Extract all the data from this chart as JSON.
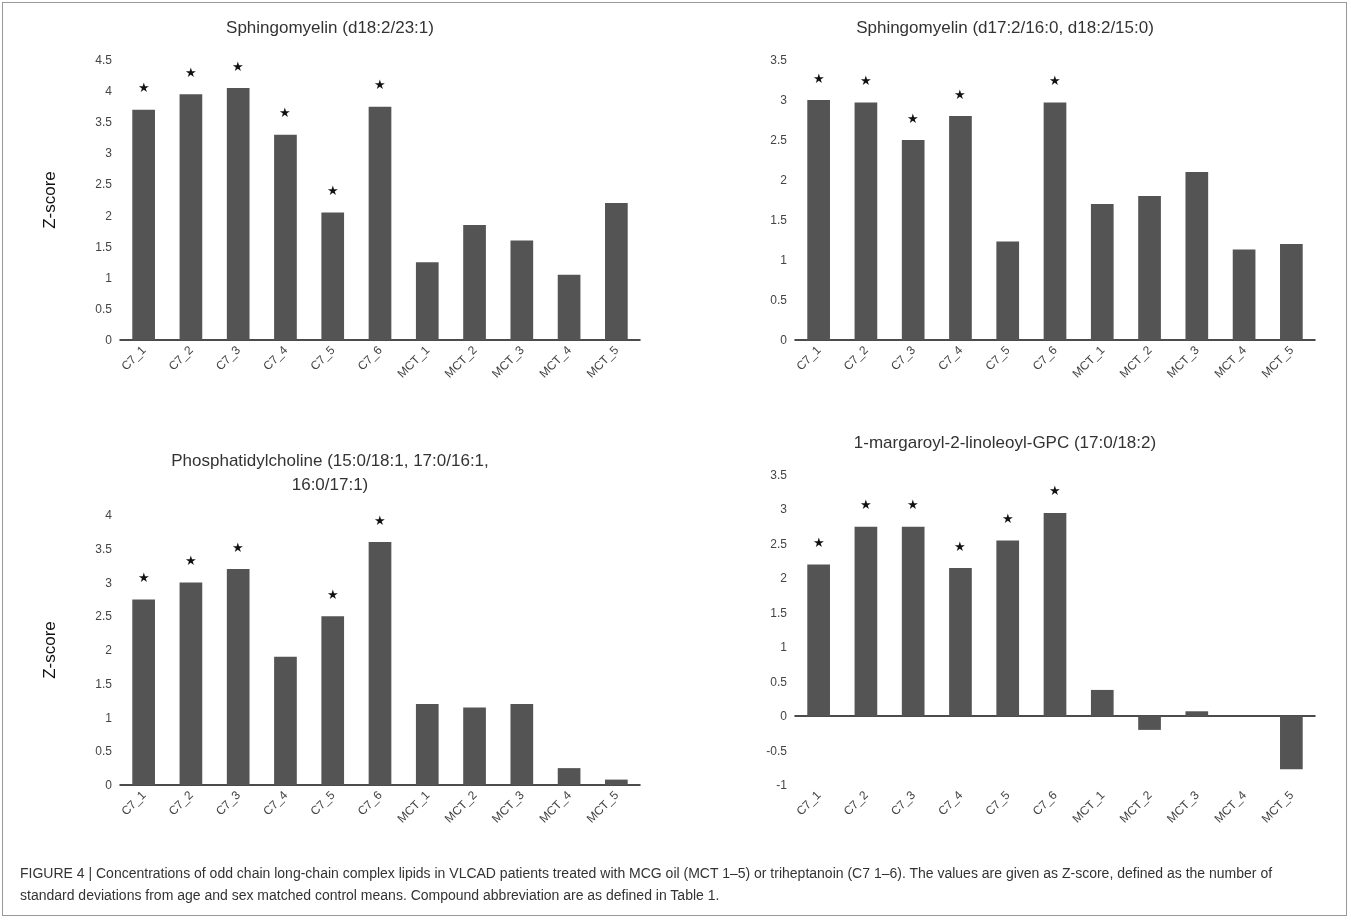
{
  "chart_data": [
    {
      "type": "bar",
      "title": "Sphingomyelin (d18:2/23:1)",
      "ylabel": "Z-score",
      "categories": [
        "C7_1",
        "C7_2",
        "C7_3",
        "C7_4",
        "C7_5",
        "C7_6",
        "MCT_1",
        "MCT_2",
        "MCT_3",
        "MCT_4",
        "MCT_5"
      ],
      "color": "#545454",
      "values": [
        3.7,
        3.95,
        4.05,
        3.3,
        2.05,
        3.75,
        1.25,
        1.85,
        1.6,
        1.05,
        2.2
      ],
      "ylim": [
        0,
        4.5
      ],
      "yticks": [
        0,
        0.5,
        1,
        1.5,
        2,
        2.5,
        3,
        3.5,
        4,
        4.5
      ],
      "annotations": [
        {
          "text": "★",
          "x": "C7_1",
          "y": 3.7
        },
        {
          "text": "★",
          "x": "C7_2",
          "y": 3.95
        },
        {
          "text": "★",
          "x": "C7_3",
          "y": 4.05
        },
        {
          "text": "★",
          "x": "C7_4",
          "y": 3.3
        },
        {
          "text": "★",
          "x": "C7_5",
          "y": 2.05
        },
        {
          "text": "★",
          "x": "C7_6",
          "y": 3.75
        }
      ]
    },
    {
      "type": "bar",
      "title": "Sphingomyelin (d17:2/16:0, d18:2/15:0)",
      "categories": [
        "C7_1",
        "C7_2",
        "C7_3",
        "C7_4",
        "C7_5",
        "C7_6",
        "MCT_1",
        "MCT_2",
        "MCT_3",
        "MCT_4",
        "MCT_5"
      ],
      "color": "#545454",
      "values": [
        3.0,
        2.97,
        2.5,
        2.8,
        1.23,
        2.97,
        1.7,
        1.8,
        2.1,
        1.13,
        1.2
      ],
      "ylim": [
        0,
        3.5
      ],
      "yticks": [
        0,
        0.5,
        1,
        1.5,
        2,
        2.5,
        3,
        3.5
      ],
      "annotations": [
        {
          "text": "★",
          "x": "C7_1",
          "y": 3.0
        },
        {
          "text": "★",
          "x": "C7_2",
          "y": 2.97
        },
        {
          "text": "★",
          "x": "C7_3",
          "y": 2.5
        },
        {
          "text": "★",
          "x": "C7_4",
          "y": 2.8
        },
        {
          "text": "★",
          "x": "C7_6",
          "y": 2.97
        }
      ]
    },
    {
      "type": "bar",
      "title": "Phosphatidylcholine (15:0/18:1, 17:0/16:1,\n16:0/17:1)",
      "ylabel": "Z-score",
      "categories": [
        "C7_1",
        "C7_2",
        "C7_3",
        "C7_4",
        "C7_5",
        "C7_6",
        "MCT_1",
        "MCT_2",
        "MCT_3",
        "MCT_4",
        "MCT_5"
      ],
      "color": "#545454",
      "values": [
        2.75,
        3.0,
        3.2,
        1.9,
        2.5,
        3.6,
        1.2,
        1.15,
        1.2,
        0.25,
        0.08
      ],
      "ylim": [
        0,
        4
      ],
      "yticks": [
        0,
        0.5,
        1,
        1.5,
        2,
        2.5,
        3,
        3.5,
        4
      ],
      "annotations": [
        {
          "text": "★",
          "x": "C7_1",
          "y": 2.75
        },
        {
          "text": "★",
          "x": "C7_2",
          "y": 3.0
        },
        {
          "text": "★",
          "x": "C7_3",
          "y": 3.2
        },
        {
          "text": "★",
          "x": "C7_5",
          "y": 2.5
        },
        {
          "text": "★",
          "x": "C7_6",
          "y": 3.6
        }
      ]
    },
    {
      "type": "bar",
      "title": "1-margaroyl-2-linoleoyl-GPC (17:0/18:2)",
      "categories": [
        "C7_1",
        "C7_2",
        "C7_3",
        "C7_4",
        "C7_5",
        "C7_6",
        "MCT_1",
        "MCT_2",
        "MCT_3",
        "MCT_4",
        "MCT_5"
      ],
      "color": "#545454",
      "values": [
        2.2,
        2.75,
        2.75,
        2.15,
        2.55,
        2.95,
        0.38,
        -0.2,
        0.07,
        0,
        -0.77
      ],
      "ylim": [
        -1,
        3.5
      ],
      "yticks": [
        -1,
        -0.5,
        0,
        0.5,
        1,
        1.5,
        2,
        2.5,
        3,
        3.5
      ],
      "annotations": [
        {
          "text": "★",
          "x": "C7_1",
          "y": 2.2
        },
        {
          "text": "★",
          "x": "C7_2",
          "y": 2.75
        },
        {
          "text": "★",
          "x": "C7_3",
          "y": 2.75
        },
        {
          "text": "★",
          "x": "C7_4",
          "y": 2.15
        },
        {
          "text": "★",
          "x": "C7_5",
          "y": 2.55
        },
        {
          "text": "★",
          "x": "C7_6",
          "y": 2.95
        },
        "FIGURE 4 | Concentrations of odd chain long-chain complex lipids in VLCAD patients treated with MCG oil (MCT 1–5) or triheptanoin (C7 1–6). The values are given as Z-score, defined as the number of standard deviations from age and sex matched control means. Compound abbreviation are as defined in Table 1."
      ]
    }
  ]
}
